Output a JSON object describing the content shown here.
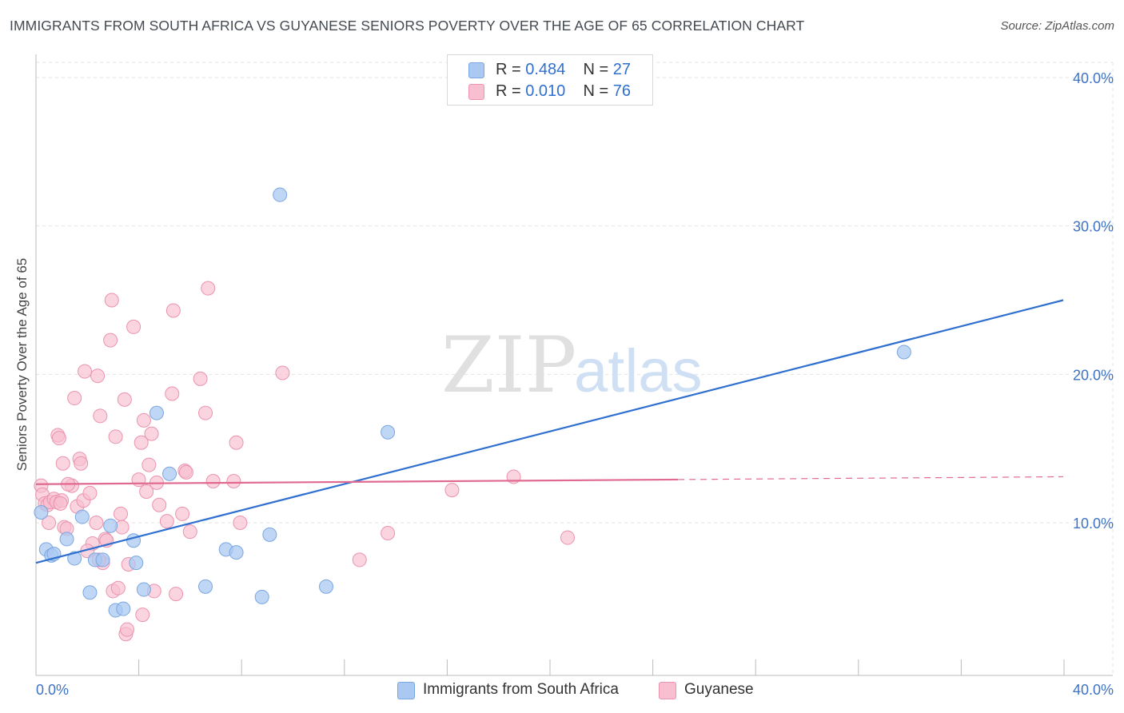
{
  "header": {
    "title": "IMMIGRANTS FROM SOUTH AFRICA VS GUYANESE SENIORS POVERTY OVER THE AGE OF 65 CORRELATION CHART",
    "source": "Source: ZipAtlas.com"
  },
  "watermark": {
    "zip": "ZIP",
    "atlas": "atlas"
  },
  "legend": {
    "r_label": "R =",
    "n_label": "N =",
    "series1": {
      "r": "0.484",
      "n": "27"
    },
    "series2": {
      "r": "0.010",
      "n": "76"
    }
  },
  "chart_data": {
    "type": "scatter",
    "title": "IMMIGRANTS FROM SOUTH AFRICA VS GUYANESE SENIORS POVERTY OVER THE AGE OF 65 CORRELATION CHART",
    "xlabel": "",
    "ylabel": "Seniors Poverty Over the Age of 65",
    "xlim": [
      0,
      40
    ],
    "ylim": [
      0,
      42
    ],
    "x_tick_labels": [
      "0.0%",
      "40.0%"
    ],
    "y_ticks": [
      10,
      20,
      30,
      40
    ],
    "y_tick_labels": [
      "10.0%",
      "20.0%",
      "30.0%",
      "40.0%"
    ],
    "colors": {
      "series1_fill": "#a9c8f2",
      "series1_stroke": "#7aa7e0",
      "series1_line": "#2f6fd0",
      "series2_fill": "#f7bfd0",
      "series2_stroke": "#eb93af",
      "series2_line": "#e0698f",
      "grid": "#e3e3e3",
      "tick_text": "#3d72c4"
    },
    "series": [
      {
        "name": "Immigrants from South Africa",
        "r": 0.484,
        "n": 27,
        "trend": {
          "x": [
            0,
            40
          ],
          "y": [
            7.3,
            25.0
          ],
          "dashed_from": null
        },
        "points": [
          [
            0.2,
            10.7
          ],
          [
            0.4,
            8.2
          ],
          [
            0.6,
            7.8
          ],
          [
            0.7,
            7.9
          ],
          [
            1.2,
            8.9
          ],
          [
            1.5,
            7.6
          ],
          [
            1.8,
            10.4
          ],
          [
            2.1,
            5.3
          ],
          [
            2.3,
            7.5
          ],
          [
            2.6,
            7.5
          ],
          [
            2.9,
            9.8
          ],
          [
            3.1,
            4.1
          ],
          [
            3.4,
            4.2
          ],
          [
            3.8,
            8.8
          ],
          [
            3.9,
            7.3
          ],
          [
            4.2,
            5.5
          ],
          [
            4.7,
            17.4
          ],
          [
            5.2,
            13.3
          ],
          [
            6.6,
            5.7
          ],
          [
            7.4,
            8.2
          ],
          [
            7.8,
            8.0
          ],
          [
            8.8,
            5.0
          ],
          [
            9.1,
            9.2
          ],
          [
            9.5,
            32.1
          ],
          [
            11.3,
            5.7
          ],
          [
            13.7,
            16.1
          ],
          [
            33.8,
            21.5
          ]
        ]
      },
      {
        "name": "Guyanese",
        "r": 0.01,
        "n": 76,
        "trend": {
          "x": [
            0,
            40
          ],
          "y": [
            12.6,
            13.1
          ],
          "dashed_from": 25.0
        },
        "points": [
          [
            0.2,
            12.5
          ],
          [
            0.25,
            11.9
          ],
          [
            0.35,
            11.3
          ],
          [
            0.45,
            11.2
          ],
          [
            0.55,
            11.4
          ],
          [
            0.5,
            10.0
          ],
          [
            0.7,
            11.6
          ],
          [
            0.8,
            11.4
          ],
          [
            0.85,
            15.9
          ],
          [
            0.9,
            15.7
          ],
          [
            1.0,
            11.5
          ],
          [
            1.05,
            14.0
          ],
          [
            1.1,
            9.7
          ],
          [
            1.2,
            9.6
          ],
          [
            1.4,
            12.5
          ],
          [
            1.5,
            18.4
          ],
          [
            1.6,
            11.1
          ],
          [
            1.7,
            14.3
          ],
          [
            1.75,
            14.0
          ],
          [
            1.85,
            11.5
          ],
          [
            1.9,
            20.2
          ],
          [
            2.1,
            12.0
          ],
          [
            2.2,
            8.6
          ],
          [
            2.35,
            10.0
          ],
          [
            2.4,
            19.9
          ],
          [
            2.5,
            17.2
          ],
          [
            2.6,
            7.3
          ],
          [
            2.7,
            8.9
          ],
          [
            2.75,
            8.8
          ],
          [
            2.9,
            22.3
          ],
          [
            2.95,
            25.0
          ],
          [
            3.0,
            5.4
          ],
          [
            3.1,
            15.8
          ],
          [
            3.2,
            5.6
          ],
          [
            3.3,
            10.6
          ],
          [
            3.35,
            9.7
          ],
          [
            3.45,
            18.3
          ],
          [
            3.5,
            2.5
          ],
          [
            3.55,
            2.8
          ],
          [
            3.8,
            23.2
          ],
          [
            4.0,
            12.9
          ],
          [
            4.1,
            15.4
          ],
          [
            4.15,
            3.8
          ],
          [
            4.2,
            16.9
          ],
          [
            4.3,
            12.1
          ],
          [
            4.4,
            13.9
          ],
          [
            4.5,
            16.0
          ],
          [
            4.6,
            5.4
          ],
          [
            4.7,
            12.7
          ],
          [
            4.8,
            11.2
          ],
          [
            5.1,
            10.1
          ],
          [
            5.3,
            18.7
          ],
          [
            5.35,
            24.3
          ],
          [
            5.45,
            5.2
          ],
          [
            5.7,
            10.6
          ],
          [
            5.8,
            13.5
          ],
          [
            5.85,
            13.4
          ],
          [
            6.0,
            9.4
          ],
          [
            6.4,
            19.7
          ],
          [
            6.6,
            17.4
          ],
          [
            6.7,
            25.8
          ],
          [
            6.9,
            12.8
          ],
          [
            7.7,
            12.8
          ],
          [
            7.8,
            15.4
          ],
          [
            7.95,
            10.0
          ],
          [
            9.6,
            20.1
          ],
          [
            12.6,
            7.5
          ],
          [
            13.7,
            9.3
          ],
          [
            16.2,
            12.2
          ],
          [
            18.6,
            13.1
          ],
          [
            20.7,
            9.0
          ],
          [
            2.0,
            8.1
          ],
          [
            1.25,
            12.6
          ],
          [
            3.6,
            7.2
          ],
          [
            0.95,
            11.3
          ],
          [
            2.45,
            7.5
          ]
        ]
      }
    ]
  },
  "bottom_legend": {
    "series1": "Immigrants from South Africa",
    "series2": "Guyanese"
  }
}
